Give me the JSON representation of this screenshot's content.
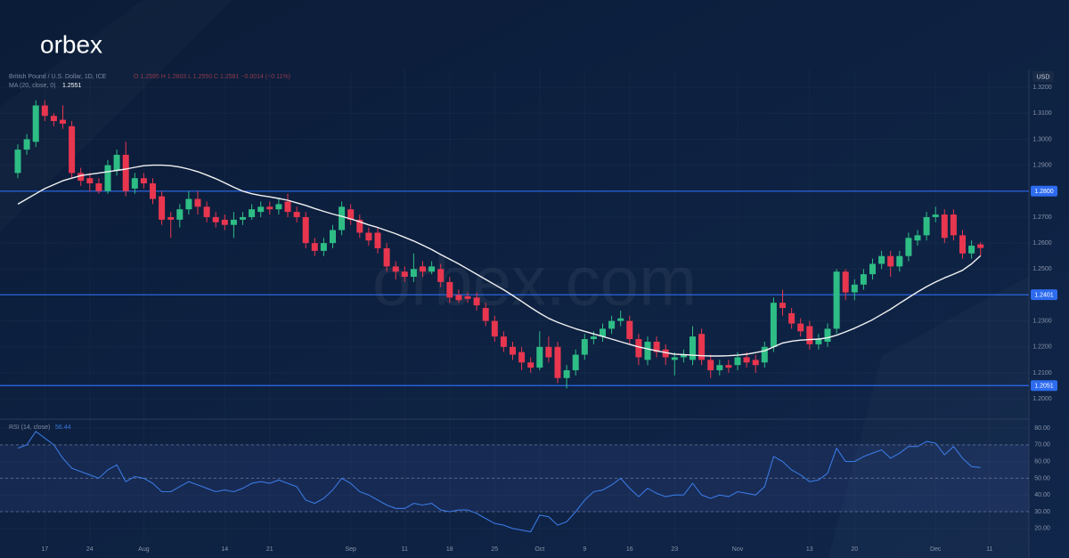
{
  "brand": "orbex",
  "chart_data": {
    "type": "candlestick",
    "title": "British Pound / U.S. Dollar, 1D, ICE",
    "ohlc_readout": "O 1.2595 H 1.2603 L 1.2550 C 1.2581 −0.0014 (−0.11%)",
    "currency": "USD",
    "watermark": "orbex.com",
    "up_color": "#2ebd85",
    "down_color": "#e8364f",
    "categories": [
      null,
      null,
      null,
      "17",
      null,
      null,
      null,
      null,
      "24",
      null,
      null,
      null,
      null,
      null,
      "Aug",
      null,
      null,
      null,
      null,
      null,
      null,
      null,
      null,
      "14",
      null,
      null,
      null,
      null,
      "21",
      null,
      null,
      null,
      null,
      null,
      null,
      null,
      null,
      "Sep",
      null,
      null,
      null,
      null,
      null,
      "11",
      null,
      null,
      null,
      null,
      "18",
      null,
      null,
      null,
      null,
      "25",
      null,
      null,
      null,
      null,
      "Oct",
      null,
      null,
      null,
      null,
      "9",
      null,
      null,
      null,
      null,
      "16",
      null,
      null,
      null,
      null,
      "23",
      null,
      null,
      null,
      null,
      null,
      null,
      "Nov",
      null,
      null,
      null,
      null,
      null,
      null,
      null,
      "13",
      null,
      null,
      null,
      null,
      "20",
      null,
      null,
      null,
      null,
      null,
      null,
      null,
      null,
      "Dec",
      null,
      null,
      null,
      null,
      null,
      "11"
    ],
    "open": [
      1.287,
      1.296,
      1.299,
      1.313,
      1.309,
      1.3075,
      1.305,
      1.287,
      1.285,
      1.283,
      1.28,
      1.288,
      1.294,
      1.281,
      1.285,
      1.283,
      1.278,
      1.27,
      1.269,
      1.273,
      1.277,
      1.274,
      1.27,
      1.269,
      1.267,
      1.269,
      1.27,
      1.272,
      1.274,
      1.273,
      1.276,
      1.272,
      1.27,
      1.26,
      1.257,
      1.26,
      1.265,
      1.273,
      1.269,
      1.264,
      1.264,
      1.258,
      1.251,
      1.249,
      1.247,
      1.251,
      1.249,
      1.25,
      1.245,
      1.24,
      1.2395,
      1.239,
      1.235,
      1.23,
      1.224,
      1.22,
      1.218,
      1.214,
      1.212,
      1.22,
      1.22,
      1.208,
      1.211,
      1.217,
      1.223,
      1.224,
      1.227,
      1.23,
      1.23,
      1.223,
      1.215,
      1.222,
      1.219,
      1.215,
      1.216,
      1.215,
      1.225,
      1.215,
      1.211,
      1.213,
      1.213,
      1.216,
      1.215,
      1.214,
      1.22,
      1.237,
      1.233,
      1.229,
      1.228,
      1.221,
      1.222,
      1.227,
      1.249,
      1.241,
      1.244,
      1.248,
      1.252,
      1.255,
      1.251,
      1.255,
      1.261,
      1.263,
      1.27,
      1.271,
      1.271,
      1.263,
      1.256,
      1.2595,
      null
    ],
    "high": [
      1.298,
      1.302,
      1.315,
      1.315,
      1.31,
      1.313,
      1.307,
      1.289,
      1.287,
      1.285,
      1.292,
      1.296,
      1.299,
      1.287,
      1.287,
      1.285,
      1.28,
      1.272,
      1.275,
      1.28,
      1.28,
      1.276,
      1.272,
      1.271,
      1.272,
      1.272,
      1.275,
      1.276,
      1.276,
      1.277,
      1.279,
      1.274,
      1.272,
      1.262,
      1.262,
      1.267,
      1.276,
      1.275,
      1.271,
      1.266,
      1.266,
      1.26,
      1.253,
      1.251,
      1.256,
      1.253,
      1.253,
      1.252,
      1.247,
      1.242,
      1.241,
      1.241,
      1.237,
      1.232,
      1.226,
      1.222,
      1.22,
      1.216,
      1.226,
      1.224,
      1.222,
      1.213,
      1.219,
      1.225,
      1.226,
      1.229,
      1.232,
      1.234,
      1.232,
      1.225,
      1.224,
      1.224,
      1.221,
      1.218,
      1.219,
      1.228,
      1.227,
      1.217,
      1.215,
      1.215,
      1.218,
      1.218,
      1.217,
      1.222,
      1.239,
      1.242,
      1.235,
      1.231,
      1.23,
      1.225,
      1.229,
      1.25,
      1.25,
      1.246,
      1.25,
      1.254,
      1.257,
      1.257,
      1.257,
      1.264,
      1.265,
      1.272,
      1.274,
      1.273,
      1.273,
      1.265,
      1.261,
      1.2603,
      null
    ],
    "low": [
      1.285,
      1.294,
      1.297,
      1.307,
      1.305,
      1.304,
      1.285,
      1.282,
      1.28,
      1.279,
      1.279,
      1.286,
      1.278,
      1.279,
      1.281,
      1.275,
      1.267,
      1.262,
      1.266,
      1.271,
      1.271,
      1.268,
      1.266,
      1.265,
      1.262,
      1.267,
      1.269,
      1.27,
      1.271,
      1.271,
      1.27,
      1.268,
      1.258,
      1.255,
      1.255,
      1.258,
      1.263,
      1.267,
      1.262,
      1.259,
      1.256,
      1.249,
      1.246,
      1.245,
      1.245,
      1.247,
      1.248,
      1.243,
      1.237,
      1.237,
      1.237,
      1.234,
      1.228,
      1.222,
      1.218,
      1.215,
      1.211,
      1.21,
      1.211,
      1.214,
      1.206,
      1.204,
      1.209,
      1.215,
      1.221,
      1.222,
      1.225,
      1.228,
      1.221,
      1.213,
      1.213,
      1.216,
      1.213,
      1.209,
      1.214,
      1.213,
      1.213,
      1.208,
      1.209,
      1.21,
      1.211,
      1.212,
      1.21,
      1.212,
      1.218,
      1.232,
      1.227,
      1.224,
      1.219,
      1.219,
      1.22,
      1.225,
      1.238,
      1.238,
      1.242,
      1.246,
      1.25,
      1.247,
      1.249,
      1.253,
      1.259,
      1.261,
      1.268,
      1.26,
      1.261,
      1.254,
      1.254,
      1.255,
      null
    ],
    "close": [
      1.296,
      1.3,
      1.313,
      1.309,
      1.307,
      1.306,
      1.287,
      1.284,
      1.283,
      1.28,
      1.29,
      1.294,
      1.28,
      1.285,
      1.283,
      1.277,
      1.269,
      1.269,
      1.273,
      1.277,
      1.274,
      1.27,
      1.268,
      1.267,
      1.269,
      1.27,
      1.273,
      1.274,
      1.273,
      1.275,
      1.272,
      1.27,
      1.26,
      1.257,
      1.26,
      1.265,
      1.274,
      1.269,
      1.264,
      1.261,
      1.258,
      1.251,
      1.249,
      1.247,
      1.25,
      1.249,
      1.251,
      1.245,
      1.239,
      1.238,
      1.2385,
      1.236,
      1.23,
      1.224,
      1.22,
      1.217,
      1.214,
      1.212,
      1.22,
      1.216,
      1.208,
      1.211,
      1.217,
      1.223,
      1.224,
      1.227,
      1.23,
      1.231,
      1.223,
      1.216,
      1.222,
      1.218,
      1.216,
      1.216,
      1.217,
      1.224,
      1.215,
      1.211,
      1.213,
      1.212,
      1.216,
      1.214,
      1.213,
      1.22,
      1.237,
      1.235,
      1.229,
      1.226,
      1.221,
      1.223,
      1.227,
      1.249,
      1.241,
      1.244,
      1.248,
      1.252,
      1.255,
      1.251,
      1.255,
      1.262,
      1.263,
      1.27,
      1.271,
      1.262,
      1.263,
      1.256,
      1.259,
      1.2581,
      null
    ],
    "ma": {
      "name": "MA (20, close, 0)",
      "value_label": "1.2551",
      "color": "#f2f2f2",
      "values": [
        1.275,
        1.277,
        1.279,
        1.281,
        1.2825,
        1.284,
        1.285,
        1.286,
        1.2865,
        1.287,
        1.2875,
        1.288,
        1.2885,
        1.2892,
        1.2898,
        1.29,
        1.29,
        1.2898,
        1.2893,
        1.2885,
        1.2875,
        1.2862,
        1.2848,
        1.2832,
        1.2815,
        1.28,
        1.279,
        1.2783,
        1.2778,
        1.2772,
        1.2765,
        1.2755,
        1.2745,
        1.2733,
        1.2722,
        1.2712,
        1.2703,
        1.2693,
        1.2682,
        1.267,
        1.266,
        1.2648,
        1.2636,
        1.2622,
        1.2608,
        1.2592,
        1.2575,
        1.2556,
        1.2538,
        1.252,
        1.25,
        1.248,
        1.246,
        1.244,
        1.242,
        1.2398,
        1.2375,
        1.2352,
        1.233,
        1.231,
        1.2295,
        1.2282,
        1.227,
        1.226,
        1.225,
        1.224,
        1.223,
        1.222,
        1.221,
        1.22,
        1.2192,
        1.2185,
        1.2178,
        1.2172,
        1.217,
        1.2168,
        1.2166,
        1.2165,
        1.2165,
        1.2166,
        1.2168,
        1.2172,
        1.2178,
        1.2185,
        1.22,
        1.2215,
        1.2222,
        1.2226,
        1.2228,
        1.223,
        1.2235,
        1.2245,
        1.2258,
        1.2272,
        1.2288,
        1.2305,
        1.2325,
        1.2345,
        1.2368,
        1.239,
        1.2412,
        1.2432,
        1.245,
        1.2466,
        1.248,
        1.2495,
        1.252,
        1.2551,
        null
      ]
    },
    "levels": [
      {
        "value": 1.28,
        "label": "1.2800"
      },
      {
        "value": 1.2401,
        "label": "1.2401"
      },
      {
        "value": 1.2051,
        "label": "1.2051"
      }
    ],
    "level_color": "#2d6bf0",
    "ylim": [
      1.1925,
      1.3269
    ],
    "yticks": [
      {
        "value": 1.32,
        "label": "1.3200"
      },
      {
        "value": 1.31,
        "label": "1.3100"
      },
      {
        "value": 1.3,
        "label": "1.3000"
      },
      {
        "value": 1.29,
        "label": "1.2900"
      },
      {
        "value": 1.28,
        "label": "1.2800"
      },
      {
        "value": 1.27,
        "label": "1.2700"
      },
      {
        "value": 1.26,
        "label": "1.2600"
      },
      {
        "value": 1.25,
        "label": "1.2500"
      },
      {
        "value": 1.24,
        "label": "1.2400"
      },
      {
        "value": 1.23,
        "label": "1.2300"
      },
      {
        "value": 1.22,
        "label": "1.2200"
      },
      {
        "value": 1.21,
        "label": "1.2100"
      },
      {
        "value": 1.2,
        "label": "1.2000"
      }
    ],
    "grid": true,
    "rsi": {
      "name": "RSI (14, close)",
      "value_label": "56.44",
      "color": "#3a78e0",
      "values": [
        68,
        70,
        78,
        74,
        70,
        62,
        56,
        54,
        52,
        50,
        55,
        58,
        48,
        51,
        50,
        47,
        42,
        42,
        45,
        48,
        46,
        44,
        42,
        43,
        42,
        44,
        47,
        48,
        47,
        49,
        47,
        45,
        37,
        35,
        38,
        43,
        50,
        47,
        42,
        40,
        37,
        34,
        32,
        32,
        35,
        34,
        35,
        31,
        30,
        31,
        31,
        29,
        26,
        23,
        22,
        20,
        19,
        18,
        28,
        27,
        22,
        24,
        30,
        37,
        42,
        43,
        46,
        50,
        44,
        39,
        44,
        41,
        39,
        40,
        40,
        47,
        40,
        38,
        40,
        39,
        42,
        41,
        40,
        45,
        63,
        60,
        55,
        52,
        48,
        49,
        53,
        68,
        60,
        60,
        63,
        65,
        67,
        62,
        65,
        69,
        69,
        72,
        71,
        64,
        69,
        62,
        57,
        56.44,
        null
      ],
      "ylim": [
        11.4,
        84.8
      ],
      "yticks": [
        {
          "value": 80,
          "label": "80.00"
        },
        {
          "value": 70,
          "label": "70.00"
        },
        {
          "value": 60,
          "label": "60.00"
        },
        {
          "value": 50,
          "label": "50.00"
        },
        {
          "value": 40,
          "label": "40.00"
        },
        {
          "value": 30,
          "label": "30.00"
        },
        {
          "value": 20,
          "label": "20.00"
        }
      ],
      "bands": [
        70,
        50,
        30
      ]
    }
  }
}
